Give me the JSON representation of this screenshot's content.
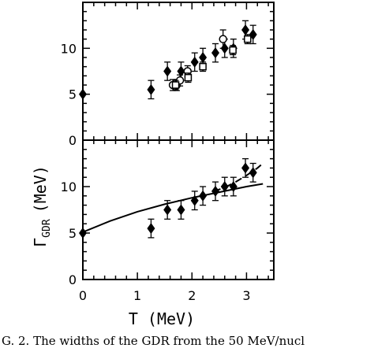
{
  "chart_data": [
    {
      "type": "scatter",
      "panel": "top",
      "xlim": [
        0,
        3.5
      ],
      "ylim": [
        0,
        15
      ],
      "xticks": [
        0,
        1,
        2,
        3
      ],
      "yticks": [
        0,
        5,
        10
      ],
      "ytick_labels": [
        "0",
        "5",
        "10"
      ],
      "grid": false,
      "series": [
        {
          "marker": "filled-diamond",
          "x": [
            0.0,
            1.25,
            1.55,
            1.8,
            2.05,
            2.2,
            2.43,
            2.6,
            2.76,
            2.98,
            3.12
          ],
          "y": [
            5.0,
            5.5,
            7.5,
            7.5,
            8.5,
            9.0,
            9.5,
            10.0,
            10.0,
            12.0,
            11.5
          ],
          "err": [
            0,
            1.0,
            1.0,
            1.0,
            1.0,
            1.0,
            1.0,
            1.0,
            1.0,
            1.0,
            1.0
          ]
        },
        {
          "marker": "open-circle",
          "x": [
            1.65,
            1.72,
            1.78,
            1.92,
            2.57
          ],
          "y": [
            6.0,
            6.0,
            6.5,
            7.5,
            11.0
          ],
          "err": [
            0.6,
            0.6,
            0.6,
            0.6,
            1.0
          ]
        },
        {
          "marker": "open-square",
          "x": [
            1.7,
            1.93,
            2.2,
            2.75,
            3.02
          ],
          "y": [
            6.0,
            6.8,
            8.0,
            9.8,
            11.0
          ],
          "err": [
            0.5,
            0.5,
            0.5,
            0.5,
            0.5
          ]
        }
      ]
    },
    {
      "type": "scatter",
      "panel": "bottom",
      "xlim": [
        0,
        3.5
      ],
      "ylim": [
        0,
        15
      ],
      "xticks": [
        0,
        1,
        2,
        3
      ],
      "xtick_labels": [
        "0",
        "1",
        "2",
        "3"
      ],
      "yticks": [
        0,
        5,
        10
      ],
      "ytick_labels": [
        "0",
        "5",
        "10"
      ],
      "xlabel": "T (MeV)",
      "grid": false,
      "series": [
        {
          "marker": "filled-diamond",
          "x": [
            0.0,
            1.25,
            1.55,
            1.8,
            2.05,
            2.2,
            2.43,
            2.6,
            2.76,
            2.98,
            3.12
          ],
          "y": [
            5.0,
            5.5,
            7.5,
            7.5,
            8.5,
            9.0,
            9.5,
            10.0,
            10.0,
            12.0,
            11.5
          ],
          "err": [
            0,
            1.0,
            1.0,
            1.0,
            1.0,
            1.0,
            1.0,
            1.0,
            1.0,
            1.0,
            1.0
          ]
        },
        {
          "line": "solid",
          "x": [
            0.0,
            0.5,
            1.0,
            1.5,
            2.0,
            2.5,
            3.0,
            3.3
          ],
          "y": [
            5.1,
            6.3,
            7.3,
            8.1,
            8.8,
            9.4,
            10.0,
            10.3
          ]
        },
        {
          "line": "dashed",
          "x": [
            2.4,
            2.6,
            2.8,
            3.0,
            3.2,
            3.3
          ],
          "y": [
            9.5,
            9.9,
            10.5,
            11.2,
            12.0,
            12.5
          ]
        }
      ]
    }
  ],
  "shared_ylabel": "Γ",
  "shared_ylabel_sub": "GDR",
  "shared_ylabel_unit": "(MeV)",
  "caption_fragment": "G. 2.   The widths of the GDR from the 50 MeV/nucl"
}
